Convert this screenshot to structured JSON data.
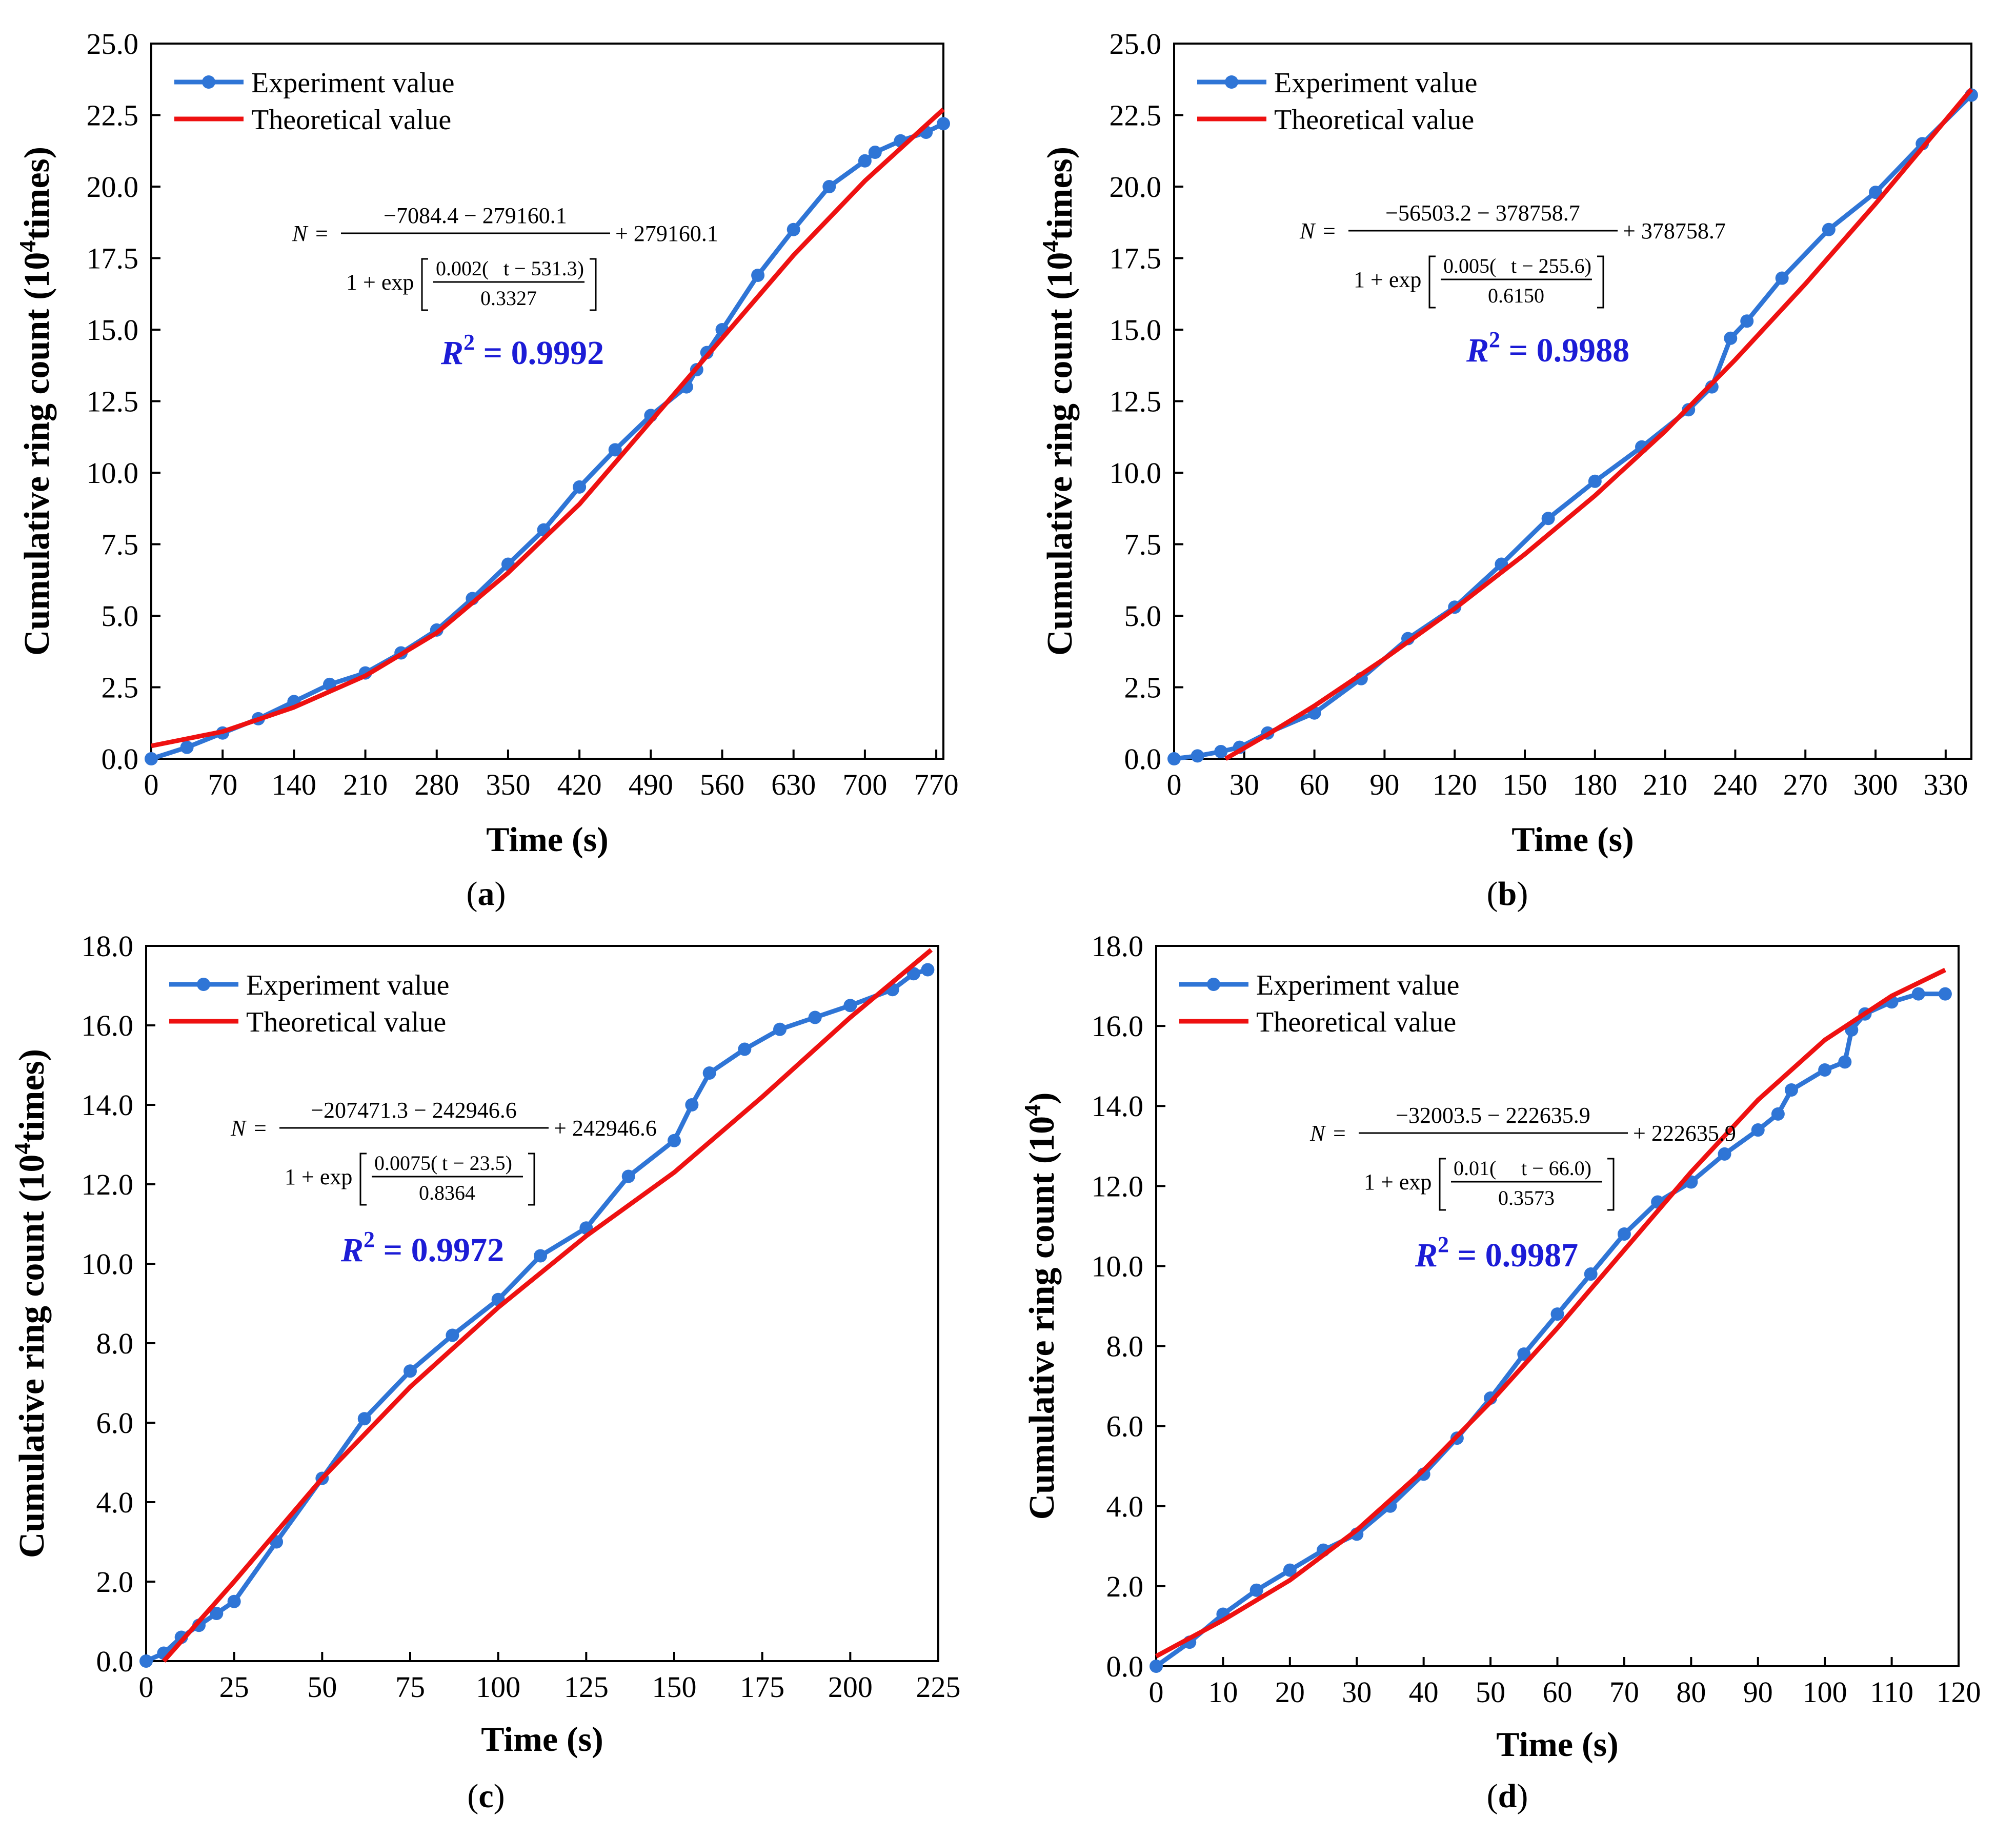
{
  "figure": {
    "colors": {
      "experiment": "#2f75d6",
      "theoretical": "#ee1111",
      "r2": "#1c1cd6",
      "text": "#000000"
    },
    "legend": {
      "experiment": "Experiment value",
      "theoretical": "Theoretical value"
    },
    "formula_parts": {
      "N": "N",
      "eq": "=",
      "one_plus": "1 + exp",
      "t": "t"
    }
  },
  "chart_data": [
    {
      "panel": "a",
      "caption_letter": "a",
      "type": "line",
      "xlabel": "Time (s)",
      "ylabel_main": "Cumulative ring count (10",
      "ylabel_sup": "4",
      "ylabel_tail": "times)",
      "xlim": [
        0,
        777
      ],
      "ylim": [
        0,
        25
      ],
      "xticks": [
        0,
        70,
        140,
        210,
        280,
        350,
        420,
        490,
        560,
        630,
        700,
        770
      ],
      "yticks": [
        0,
        2.5,
        5,
        7.5,
        10,
        12.5,
        15,
        17.5,
        20,
        22.5,
        25
      ],
      "ydecimals": 1,
      "r2": "= 0.9992",
      "r2_label": "R",
      "formula": {
        "top": "−7084.4 − 279160.1",
        "tail": "+ 279160.1",
        "coef": "0.002",
        "shift": "t − 531.3",
        "den": "0.3327"
      },
      "experiment": {
        "x": [
          0,
          35,
          70,
          105,
          140,
          175,
          210,
          245,
          280,
          315,
          350,
          385,
          420,
          455,
          490,
          525,
          535,
          545,
          560,
          595,
          630,
          665,
          700,
          710,
          735,
          760,
          777
        ],
        "y": [
          0.0,
          0.4,
          0.9,
          1.4,
          2.0,
          2.6,
          3.0,
          3.7,
          4.5,
          5.6,
          6.8,
          8.0,
          9.5,
          10.8,
          12.0,
          13.0,
          13.6,
          14.2,
          15.0,
          16.9,
          18.5,
          20.0,
          20.9,
          21.2,
          21.6,
          21.9,
          22.2
        ]
      },
      "theoretical": {
        "x": [
          0,
          70,
          140,
          210,
          280,
          350,
          420,
          490,
          560,
          630,
          700,
          777
        ],
        "y": [
          0.45,
          0.95,
          1.8,
          2.9,
          4.4,
          6.5,
          8.9,
          11.8,
          14.7,
          17.6,
          20.2,
          22.7
        ]
      }
    },
    {
      "panel": "b",
      "caption_letter": "b",
      "type": "line",
      "xlabel": "Time (s)",
      "ylabel_main": "Cumulative ring count (10",
      "ylabel_sup": "4",
      "ylabel_tail": "times)",
      "xlim": [
        0,
        341
      ],
      "ylim": [
        0,
        25
      ],
      "xticks": [
        0,
        30,
        60,
        90,
        120,
        150,
        180,
        210,
        240,
        270,
        300,
        330
      ],
      "yticks": [
        0,
        2.5,
        5,
        7.5,
        10,
        12.5,
        15,
        17.5,
        20,
        22.5,
        25
      ],
      "ydecimals": 1,
      "r2": "= 0.9988",
      "r2_label": "R",
      "formula": {
        "top": "−56503.2 − 378758.7",
        "tail": "+ 378758.7",
        "coef": "0.005",
        "shift": "t − 255.6",
        "den": "0.6150"
      },
      "experiment": {
        "x": [
          0,
          10,
          20,
          28,
          40,
          60,
          80,
          100,
          120,
          140,
          160,
          180,
          200,
          220,
          230,
          238,
          245,
          260,
          280,
          300,
          320,
          341
        ],
        "y": [
          0.0,
          0.1,
          0.25,
          0.4,
          0.9,
          1.6,
          2.8,
          4.2,
          5.3,
          6.8,
          8.4,
          9.7,
          10.9,
          12.2,
          13.0,
          14.7,
          15.3,
          16.8,
          18.5,
          19.8,
          21.5,
          23.2
        ]
      },
      "theoretical": {
        "x": [
          22,
          40,
          60,
          90,
          120,
          150,
          180,
          210,
          240,
          270,
          300,
          341
        ],
        "y": [
          0.0,
          0.85,
          1.85,
          3.5,
          5.25,
          7.15,
          9.2,
          11.45,
          13.95,
          16.6,
          19.4,
          23.4
        ]
      }
    },
    {
      "panel": "c",
      "caption_letter": "c",
      "type": "line",
      "xlabel": "Time (s)",
      "ylabel_main": "Cumulative ring count (10",
      "ylabel_sup": "4",
      "ylabel_tail": "times)",
      "xlim": [
        0,
        225
      ],
      "ylim": [
        0,
        18
      ],
      "xticks": [
        0,
        25,
        50,
        75,
        100,
        125,
        150,
        175,
        200,
        225
      ],
      "yticks": [
        0,
        2,
        4,
        6,
        8,
        10,
        12,
        14,
        16,
        18
      ],
      "ydecimals": 1,
      "r2": "= 0.9972",
      "r2_label": "R",
      "formula": {
        "top": "−207471.3 − 242946.6",
        "tail": "+ 242946.6",
        "coef": "0.0075",
        "shift": "t − 23.5",
        "den": "0.8364"
      },
      "experiment": {
        "x": [
          0,
          5,
          10,
          15,
          20,
          25,
          37,
          50,
          62,
          75,
          87,
          100,
          112,
          125,
          137,
          150,
          155,
          160,
          170,
          180,
          190,
          200,
          212,
          218,
          222
        ],
        "y": [
          0.0,
          0.2,
          0.6,
          0.9,
          1.2,
          1.5,
          3.0,
          4.6,
          6.1,
          7.3,
          8.2,
          9.1,
          10.2,
          10.9,
          12.2,
          13.1,
          14.0,
          14.8,
          15.4,
          15.9,
          16.2,
          16.5,
          16.9,
          17.3,
          17.4
        ]
      },
      "theoretical": {
        "x": [
          5,
          25,
          50,
          75,
          100,
          125,
          150,
          175,
          200,
          223
        ],
        "y": [
          0.0,
          2.0,
          4.6,
          6.9,
          8.9,
          10.7,
          12.3,
          14.2,
          16.2,
          17.9
        ]
      }
    },
    {
      "panel": "d",
      "caption_letter": "d",
      "type": "line",
      "xlabel": "Time (s)",
      "ylabel_main": "Cumulative ring count (10",
      "ylabel_sup": "4",
      "ylabel_tail": ")",
      "xlim": [
        0,
        120
      ],
      "ylim": [
        0,
        18
      ],
      "xticks": [
        0,
        10,
        20,
        30,
        40,
        50,
        60,
        70,
        80,
        90,
        100,
        110,
        120
      ],
      "yticks": [
        0,
        2,
        4,
        6,
        8,
        10,
        12,
        14,
        16,
        18
      ],
      "ydecimals": 1,
      "r2": "= 0.9987",
      "r2_label": "R",
      "formula": {
        "top": "−32003.5 − 222635.9",
        "tail": "+ 222635.9",
        "coef": "0.01",
        "shift": "t − 66.0",
        "den": "0.3573"
      },
      "experiment": {
        "x": [
          0,
          5,
          10,
          15,
          20,
          25,
          30,
          35,
          40,
          45,
          50,
          55,
          60,
          65,
          70,
          75,
          80,
          85,
          90,
          93,
          95,
          100,
          103,
          104,
          106,
          110,
          114,
          118
        ],
        "y": [
          0.0,
          0.6,
          1.3,
          1.9,
          2.4,
          2.9,
          3.3,
          4.0,
          4.8,
          5.7,
          6.7,
          7.8,
          8.8,
          9.8,
          10.8,
          11.6,
          12.1,
          12.8,
          13.4,
          13.8,
          14.4,
          14.9,
          15.1,
          15.9,
          16.3,
          16.6,
          16.8,
          16.8
        ]
      },
      "theoretical": {
        "x": [
          0,
          10,
          20,
          30,
          40,
          50,
          60,
          70,
          80,
          90,
          100,
          110,
          118
        ],
        "y": [
          0.25,
          1.15,
          2.15,
          3.4,
          4.9,
          6.6,
          8.45,
          10.4,
          12.35,
          14.15,
          15.65,
          16.75,
          17.4
        ]
      }
    }
  ]
}
